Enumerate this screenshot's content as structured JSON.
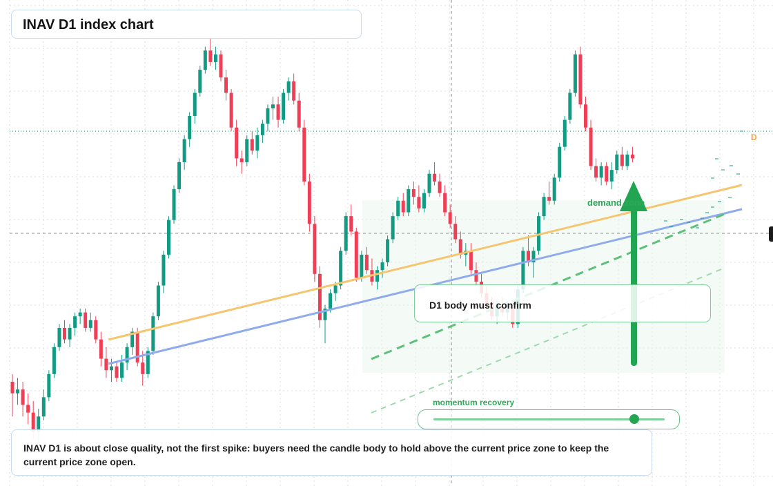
{
  "header": {
    "title": "INAV D1 index chart"
  },
  "annotations": {
    "confirm": "D1 body must confirm",
    "demand": "demand zone",
    "momentum": "momentum recovery",
    "note": "INAV D1 is about close quality, not the first spike: buyers need the candle body to hold above the current price zone to keep the current price zone open.",
    "d_marker": "D"
  },
  "momentum_level": 0.87,
  "colors": {
    "bull": "#129a82",
    "bear": "#ef3f57",
    "orange_trend": "#f6c56f",
    "blue_trend": "#8fabec",
    "green_accent": "#22a552",
    "grid": "#d9dee4"
  },
  "icons": {
    "arrow": "up-arrow-icon"
  },
  "chart_data": {
    "type": "candlestick",
    "title": "INAV D1 index chart",
    "xlabel": "",
    "ylabel": "",
    "ylim": [
      0,
      100
    ],
    "grid": true,
    "candles": [
      {
        "o": 12,
        "h": 14,
        "l": 3,
        "c": 9
      },
      {
        "o": 9,
        "h": 13,
        "l": 6,
        "c": 10
      },
      {
        "o": 10,
        "h": 12,
        "l": 3,
        "c": 6
      },
      {
        "o": 6,
        "h": 9,
        "l": 1,
        "c": 4
      },
      {
        "o": 4,
        "h": 7,
        "l": -3,
        "c": -1
      },
      {
        "o": -1,
        "h": 5,
        "l": -5,
        "c": 3
      },
      {
        "o": 3,
        "h": 10,
        "l": 2,
        "c": 8
      },
      {
        "o": 8,
        "h": 15,
        "l": 7,
        "c": 14
      },
      {
        "o": 14,
        "h": 22,
        "l": 13,
        "c": 21
      },
      {
        "o": 21,
        "h": 27,
        "l": 20,
        "c": 26
      },
      {
        "o": 26,
        "h": 28,
        "l": 22,
        "c": 23
      },
      {
        "o": 23,
        "h": 27,
        "l": 21,
        "c": 26
      },
      {
        "o": 26,
        "h": 30,
        "l": 24,
        "c": 29
      },
      {
        "o": 29,
        "h": 31,
        "l": 27,
        "c": 30
      },
      {
        "o": 30,
        "h": 31,
        "l": 25,
        "c": 26
      },
      {
        "o": 26,
        "h": 30,
        "l": 25,
        "c": 28
      },
      {
        "o": 28,
        "h": 29,
        "l": 22,
        "c": 23
      },
      {
        "o": 23,
        "h": 25,
        "l": 16,
        "c": 18
      },
      {
        "o": 18,
        "h": 21,
        "l": 13,
        "c": 15
      },
      {
        "o": 15,
        "h": 18,
        "l": 12,
        "c": 16
      },
      {
        "o": 16,
        "h": 17,
        "l": 12,
        "c": 13
      },
      {
        "o": 13,
        "h": 19,
        "l": 12,
        "c": 17
      },
      {
        "o": 17,
        "h": 22,
        "l": 15,
        "c": 21
      },
      {
        "o": 21,
        "h": 26,
        "l": 19,
        "c": 25
      },
      {
        "o": 25,
        "h": 26,
        "l": 16,
        "c": 17
      },
      {
        "o": 17,
        "h": 20,
        "l": 11,
        "c": 14
      },
      {
        "o": 14,
        "h": 21,
        "l": 13,
        "c": 20
      },
      {
        "o": 20,
        "h": 30,
        "l": 19,
        "c": 29
      },
      {
        "o": 29,
        "h": 38,
        "l": 28,
        "c": 37
      },
      {
        "o": 37,
        "h": 46,
        "l": 35,
        "c": 45
      },
      {
        "o": 45,
        "h": 55,
        "l": 44,
        "c": 54
      },
      {
        "o": 54,
        "h": 63,
        "l": 53,
        "c": 62
      },
      {
        "o": 62,
        "h": 70,
        "l": 61,
        "c": 69
      },
      {
        "o": 69,
        "h": 76,
        "l": 67,
        "c": 75
      },
      {
        "o": 75,
        "h": 82,
        "l": 73,
        "c": 81
      },
      {
        "o": 81,
        "h": 88,
        "l": 79,
        "c": 87
      },
      {
        "o": 87,
        "h": 94,
        "l": 86,
        "c": 93
      },
      {
        "o": 93,
        "h": 99,
        "l": 92,
        "c": 98
      },
      {
        "o": 98,
        "h": 101,
        "l": 94,
        "c": 95
      },
      {
        "o": 95,
        "h": 99,
        "l": 93,
        "c": 97
      },
      {
        "o": 97,
        "h": 98,
        "l": 90,
        "c": 91
      },
      {
        "o": 91,
        "h": 93,
        "l": 85,
        "c": 87
      },
      {
        "o": 87,
        "h": 88,
        "l": 77,
        "c": 78
      },
      {
        "o": 78,
        "h": 80,
        "l": 68,
        "c": 70
      },
      {
        "o": 70,
        "h": 72,
        "l": 66,
        "c": 69
      },
      {
        "o": 69,
        "h": 76,
        "l": 68,
        "c": 75
      },
      {
        "o": 75,
        "h": 77,
        "l": 71,
        "c": 72
      },
      {
        "o": 72,
        "h": 78,
        "l": 70,
        "c": 76
      },
      {
        "o": 76,
        "h": 80,
        "l": 74,
        "c": 79
      },
      {
        "o": 79,
        "h": 84,
        "l": 77,
        "c": 83
      },
      {
        "o": 83,
        "h": 86,
        "l": 80,
        "c": 84
      },
      {
        "o": 84,
        "h": 86,
        "l": 78,
        "c": 80
      },
      {
        "o": 80,
        "h": 88,
        "l": 79,
        "c": 87
      },
      {
        "o": 87,
        "h": 91,
        "l": 85,
        "c": 90
      },
      {
        "o": 90,
        "h": 92,
        "l": 84,
        "c": 85
      },
      {
        "o": 85,
        "h": 87,
        "l": 77,
        "c": 78
      },
      {
        "o": 78,
        "h": 80,
        "l": 63,
        "c": 64
      },
      {
        "o": 64,
        "h": 66,
        "l": 51,
        "c": 53
      },
      {
        "o": 53,
        "h": 55,
        "l": 38,
        "c": 40
      },
      {
        "o": 40,
        "h": 42,
        "l": 26,
        "c": 28
      },
      {
        "o": 28,
        "h": 32,
        "l": 22,
        "c": 31
      },
      {
        "o": 31,
        "h": 36,
        "l": 30,
        "c": 35
      },
      {
        "o": 35,
        "h": 38,
        "l": 33,
        "c": 37
      },
      {
        "o": 37,
        "h": 47,
        "l": 36,
        "c": 46
      },
      {
        "o": 46,
        "h": 56,
        "l": 45,
        "c": 55
      },
      {
        "o": 55,
        "h": 58,
        "l": 50,
        "c": 51
      },
      {
        "o": 51,
        "h": 52,
        "l": 38,
        "c": 39
      },
      {
        "o": 39,
        "h": 46,
        "l": 38,
        "c": 45
      },
      {
        "o": 45,
        "h": 47,
        "l": 40,
        "c": 41
      },
      {
        "o": 41,
        "h": 44,
        "l": 37,
        "c": 38
      },
      {
        "o": 38,
        "h": 42,
        "l": 36,
        "c": 41
      },
      {
        "o": 41,
        "h": 44,
        "l": 39,
        "c": 43
      },
      {
        "o": 43,
        "h": 50,
        "l": 42,
        "c": 49
      },
      {
        "o": 49,
        "h": 56,
        "l": 48,
        "c": 55
      },
      {
        "o": 55,
        "h": 60,
        "l": 54,
        "c": 59
      },
      {
        "o": 59,
        "h": 61,
        "l": 55,
        "c": 56
      },
      {
        "o": 56,
        "h": 63,
        "l": 55,
        "c": 62
      },
      {
        "o": 62,
        "h": 64,
        "l": 58,
        "c": 60
      },
      {
        "o": 60,
        "h": 63,
        "l": 56,
        "c": 57
      },
      {
        "o": 57,
        "h": 62,
        "l": 56,
        "c": 61
      },
      {
        "o": 61,
        "h": 67,
        "l": 60,
        "c": 66
      },
      {
        "o": 66,
        "h": 69,
        "l": 63,
        "c": 64
      },
      {
        "o": 64,
        "h": 66,
        "l": 60,
        "c": 61
      },
      {
        "o": 61,
        "h": 63,
        "l": 55,
        "c": 56
      },
      {
        "o": 56,
        "h": 58,
        "l": 52,
        "c": 53
      },
      {
        "o": 53,
        "h": 55,
        "l": 48,
        "c": 49
      },
      {
        "o": 49,
        "h": 51,
        "l": 44,
        "c": 45
      },
      {
        "o": 45,
        "h": 48,
        "l": 42,
        "c": 46
      },
      {
        "o": 46,
        "h": 48,
        "l": 40,
        "c": 41
      },
      {
        "o": 41,
        "h": 43,
        "l": 37,
        "c": 38
      },
      {
        "o": 38,
        "h": 40,
        "l": 34,
        "c": 35
      },
      {
        "o": 35,
        "h": 37,
        "l": 31,
        "c": 32
      },
      {
        "o": 32,
        "h": 34,
        "l": 28,
        "c": 29
      },
      {
        "o": 29,
        "h": 33,
        "l": 27,
        "c": 32
      },
      {
        "o": 32,
        "h": 34,
        "l": 29,
        "c": 30
      },
      {
        "o": 30,
        "h": 33,
        "l": 28,
        "c": 31
      },
      {
        "o": 31,
        "h": 32,
        "l": 26,
        "c": 27
      },
      {
        "o": 27,
        "h": 37,
        "l": 26,
        "c": 36
      },
      {
        "o": 36,
        "h": 47,
        "l": 35,
        "c": 46
      },
      {
        "o": 46,
        "h": 50,
        "l": 42,
        "c": 43
      },
      {
        "o": 43,
        "h": 47,
        "l": 39,
        "c": 46
      },
      {
        "o": 46,
        "h": 56,
        "l": 45,
        "c": 55
      },
      {
        "o": 55,
        "h": 61,
        "l": 54,
        "c": 60
      },
      {
        "o": 60,
        "h": 64,
        "l": 58,
        "c": 59
      },
      {
        "o": 59,
        "h": 66,
        "l": 58,
        "c": 65
      },
      {
        "o": 65,
        "h": 74,
        "l": 64,
        "c": 73
      },
      {
        "o": 73,
        "h": 81,
        "l": 72,
        "c": 80
      },
      {
        "o": 80,
        "h": 88,
        "l": 79,
        "c": 87
      },
      {
        "o": 87,
        "h": 98,
        "l": 86,
        "c": 97
      },
      {
        "o": 97,
        "h": 99,
        "l": 83,
        "c": 84
      },
      {
        "o": 84,
        "h": 86,
        "l": 77,
        "c": 78
      },
      {
        "o": 78,
        "h": 80,
        "l": 67,
        "c": 68
      },
      {
        "o": 68,
        "h": 70,
        "l": 64,
        "c": 65
      },
      {
        "o": 65,
        "h": 69,
        "l": 63,
        "c": 68
      },
      {
        "o": 68,
        "h": 69,
        "l": 63,
        "c": 64
      },
      {
        "o": 64,
        "h": 69,
        "l": 62,
        "c": 67
      },
      {
        "o": 67,
        "h": 72,
        "l": 66,
        "c": 71
      },
      {
        "o": 71,
        "h": 73,
        "l": 67,
        "c": 68
      },
      {
        "o": 68,
        "h": 72,
        "l": 67,
        "c": 71
      },
      {
        "o": 71,
        "h": 73,
        "l": 69,
        "c": 70
      }
    ],
    "overlays": [
      {
        "name": "",
        "type": "trendline",
        "color": "#f6c56f"
      },
      {
        "name": "",
        "type": "trendline",
        "color": "#8fabec"
      },
      {
        "name": "",
        "type": "trendline-dashed",
        "color": "#5cc07a"
      }
    ]
  }
}
